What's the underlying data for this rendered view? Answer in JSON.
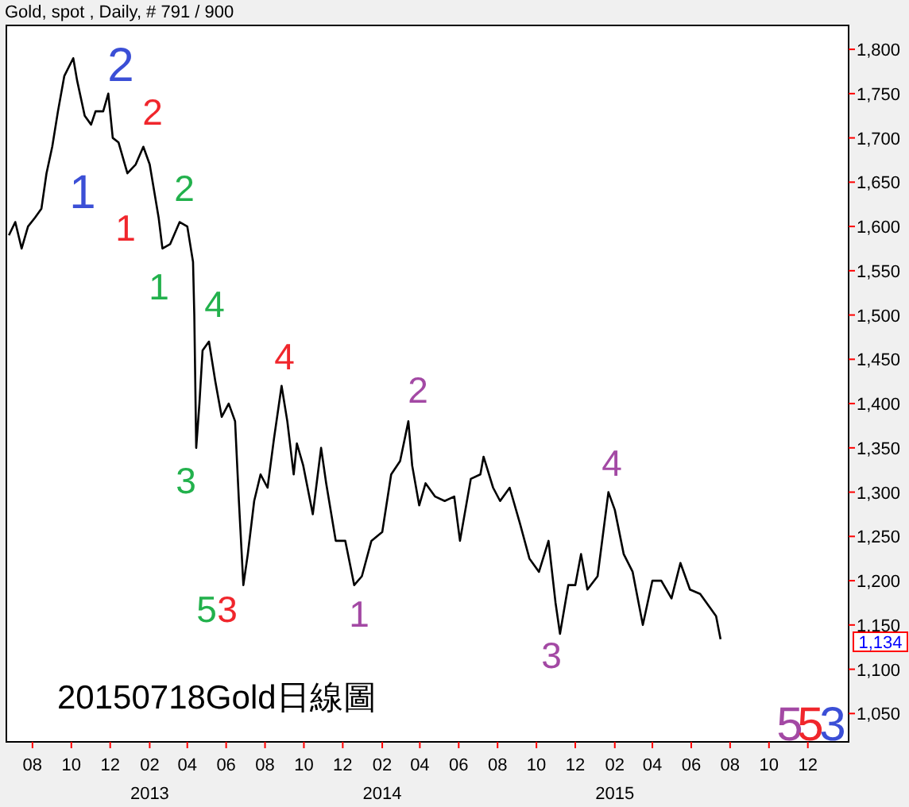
{
  "chart_data": {
    "type": "line",
    "title": "Gold, spot , Daily, # 791 / 900",
    "color": "#000000",
    "x": [
      "2012-06-25",
      "2012-07-05",
      "2012-07-15",
      "2012-07-25",
      "2012-08-05",
      "2012-08-15",
      "2012-08-23",
      "2012-09-01",
      "2012-09-10",
      "2012-09-20",
      "2012-10-04",
      "2012-10-10",
      "2012-10-22",
      "2012-11-01",
      "2012-11-08",
      "2012-11-20",
      "2012-11-28",
      "2012-12-05",
      "2012-12-14",
      "2012-12-28",
      "2013-01-10",
      "2013-01-22",
      "2013-02-01",
      "2013-02-15",
      "2013-02-21",
      "2013-03-05",
      "2013-03-20",
      "2013-04-01",
      "2013-04-10",
      "2013-04-12",
      "2013-04-15",
      "2013-04-20",
      "2013-04-25",
      "2013-05-05",
      "2013-05-15",
      "2013-05-25",
      "2013-06-05",
      "2013-06-15",
      "2013-06-21",
      "2013-06-28",
      "2013-07-05",
      "2013-07-15",
      "2013-07-25",
      "2013-08-05",
      "2013-08-15",
      "2013-08-27",
      "2013-09-05",
      "2013-09-15",
      "2013-09-20",
      "2013-09-30",
      "2013-10-15",
      "2013-10-28",
      "2013-11-05",
      "2013-11-20",
      "2013-12-05",
      "2013-12-19",
      "2013-12-31",
      "2014-01-15",
      "2014-02-01",
      "2014-02-15",
      "2014-03-01",
      "2014-03-14",
      "2014-03-20",
      "2014-03-31",
      "2014-04-10",
      "2014-04-25",
      "2014-05-10",
      "2014-05-25",
      "2014-06-03",
      "2014-06-20",
      "2014-07-05",
      "2014-07-10",
      "2014-07-25",
      "2014-08-05",
      "2014-08-20",
      "2014-09-05",
      "2014-09-20",
      "2014-10-05",
      "2014-10-20",
      "2014-10-31",
      "2014-11-07",
      "2014-11-20",
      "2014-12-01",
      "2014-12-10",
      "2014-12-20",
      "2015-01-05",
      "2015-01-22",
      "2015-02-01",
      "2015-02-15",
      "2015-03-01",
      "2015-03-17",
      "2015-04-01",
      "2015-04-15",
      "2015-05-01",
      "2015-05-15",
      "2015-05-30",
      "2015-06-15",
      "2015-06-30",
      "2015-07-10",
      "2015-07-17"
    ],
    "values": [
      1590,
      1605,
      1575,
      1600,
      1610,
      1620,
      1660,
      1690,
      1730,
      1770,
      1790,
      1765,
      1725,
      1715,
      1730,
      1730,
      1750,
      1700,
      1695,
      1660,
      1670,
      1690,
      1670,
      1610,
      1575,
      1580,
      1605,
      1600,
      1560,
      1500,
      1350,
      1400,
      1460,
      1470,
      1425,
      1385,
      1400,
      1380,
      1290,
      1195,
      1230,
      1290,
      1320,
      1305,
      1360,
      1420,
      1380,
      1320,
      1355,
      1330,
      1275,
      1350,
      1310,
      1245,
      1245,
      1195,
      1205,
      1245,
      1255,
      1320,
      1335,
      1380,
      1330,
      1285,
      1310,
      1295,
      1290,
      1295,
      1245,
      1315,
      1320,
      1340,
      1305,
      1290,
      1305,
      1265,
      1225,
      1210,
      1245,
      1175,
      1140,
      1195,
      1195,
      1230,
      1190,
      1205,
      1300,
      1280,
      1230,
      1210,
      1150,
      1200,
      1200,
      1180,
      1220,
      1190,
      1185,
      1170,
      1160,
      1134
    ],
    "xlim": [
      "2012-06-21",
      "2016-02-03"
    ],
    "ylim": [
      1018,
      1827
    ],
    "yticks": [
      {
        "value": 1050,
        "label": "1,050"
      },
      {
        "value": 1100,
        "label": "1,100"
      },
      {
        "value": 1150,
        "label": "1,150"
      },
      {
        "value": 1200,
        "label": "1,200"
      },
      {
        "value": 1250,
        "label": "1,250"
      },
      {
        "value": 1300,
        "label": "1,300"
      },
      {
        "value": 1350,
        "label": "1,350"
      },
      {
        "value": 1400,
        "label": "1,400"
      },
      {
        "value": 1450,
        "label": "1,450"
      },
      {
        "value": 1500,
        "label": "1,500"
      },
      {
        "value": 1550,
        "label": "1,550"
      },
      {
        "value": 1600,
        "label": "1,600"
      },
      {
        "value": 1650,
        "label": "1,650"
      },
      {
        "value": 1700,
        "label": "1,700"
      },
      {
        "value": 1750,
        "label": "1,750"
      },
      {
        "value": 1800,
        "label": "1,800"
      }
    ],
    "xticks": [
      {
        "value": "2012-08-01",
        "label": "08"
      },
      {
        "value": "2012-10-01",
        "label": "10"
      },
      {
        "value": "2012-12-01",
        "label": "12"
      },
      {
        "value": "2013-02-01",
        "label": "02"
      },
      {
        "value": "2013-04-01",
        "label": "04"
      },
      {
        "value": "2013-06-01",
        "label": "06"
      },
      {
        "value": "2013-08-01",
        "label": "08"
      },
      {
        "value": "2013-10-01",
        "label": "10"
      },
      {
        "value": "2013-12-01",
        "label": "12"
      },
      {
        "value": "2014-02-01",
        "label": "02"
      },
      {
        "value": "2014-04-01",
        "label": "04"
      },
      {
        "value": "2014-06-01",
        "label": "06"
      },
      {
        "value": "2014-08-01",
        "label": "08"
      },
      {
        "value": "2014-10-01",
        "label": "10"
      },
      {
        "value": "2014-12-01",
        "label": "12"
      },
      {
        "value": "2015-02-01",
        "label": "02"
      },
      {
        "value": "2015-04-01",
        "label": "04"
      },
      {
        "value": "2015-06-01",
        "label": "06"
      },
      {
        "value": "2015-08-01",
        "label": "08"
      },
      {
        "value": "2015-10-01",
        "label": "10"
      },
      {
        "value": "2015-12-01",
        "label": "12"
      }
    ],
    "x2lim": [
      "2012-06-21",
      "2016-02-03"
    ],
    "x2ticks": [
      {
        "value": "2013-02-01",
        "label": "2013"
      },
      {
        "value": "2014-02-01",
        "label": "2014"
      },
      {
        "value": "2015-02-01",
        "label": "2015"
      }
    ],
    "annotations": [
      "1",
      "2",
      "1",
      "2",
      "1",
      "2",
      "3",
      "4",
      "5",
      "3",
      "4",
      "1",
      "2",
      "3",
      "4",
      "5",
      "5",
      "3",
      "1,134",
      "20150718Gold日線圖"
    ]
  }
}
